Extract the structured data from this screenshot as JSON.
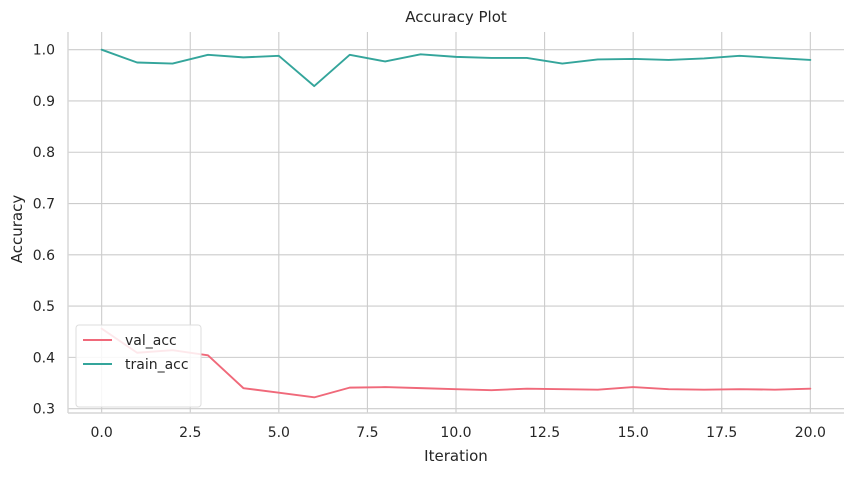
{
  "chart_data": {
    "type": "line",
    "title": "Accuracy Plot",
    "xlabel": "Iteration",
    "ylabel": "Accuracy",
    "xlim": [
      -0.95,
      20.95
    ],
    "ylim": [
      0.2915,
      1.0345
    ],
    "xticks": [
      0.0,
      2.5,
      5.0,
      7.5,
      10.0,
      12.5,
      15.0,
      17.5,
      20.0
    ],
    "xtick_labels": [
      "0.0",
      "2.5",
      "5.0",
      "7.5",
      "10.0",
      "12.5",
      "15.0",
      "17.5",
      "20.0"
    ],
    "yticks": [
      0.3,
      0.4,
      0.5,
      0.6,
      0.7,
      0.8,
      0.9,
      1.0
    ],
    "ytick_labels": [
      "0.3",
      "0.4",
      "0.5",
      "0.6",
      "0.7",
      "0.8",
      "0.9",
      "1.0"
    ],
    "grid": true,
    "legend_position": "lower-left",
    "x": [
      0,
      1,
      2,
      3,
      4,
      5,
      6,
      7,
      8,
      9,
      10,
      11,
      12,
      13,
      14,
      15,
      16,
      17,
      18,
      19,
      20
    ],
    "series": [
      {
        "name": "val_acc",
        "color": "#f0697a",
        "values": [
          0.456,
          0.409,
          0.414,
          0.404,
          0.34,
          0.331,
          0.322,
          0.341,
          0.342,
          0.34,
          0.338,
          0.336,
          0.339,
          0.338,
          0.337,
          0.342,
          0.338,
          0.337,
          0.338,
          0.337,
          0.339
        ]
      },
      {
        "name": "train_acc",
        "color": "#34a59b",
        "values": [
          1.0,
          0.975,
          0.973,
          0.99,
          0.985,
          0.988,
          0.929,
          0.99,
          0.977,
          0.991,
          0.986,
          0.984,
          0.984,
          0.973,
          0.981,
          0.982,
          0.98,
          0.983,
          0.988,
          0.984,
          0.98
        ]
      }
    ]
  }
}
